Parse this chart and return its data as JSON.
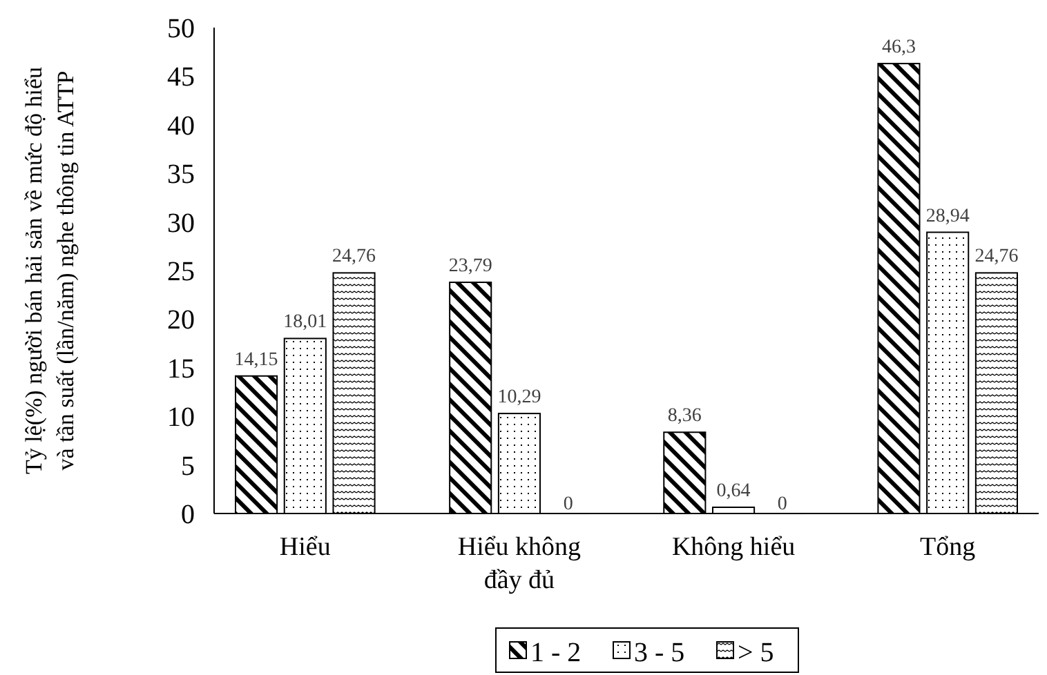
{
  "chart_data": {
    "type": "bar",
    "ylabel": "Tỷ lệ(%) người bán hải sản về mức độ hiểu và tần suất (lần/năm) nghe thông tin ATTP",
    "categories": [
      "Hiểu",
      "Hiểu không đầy đủ",
      "Không hiểu",
      "Tổng"
    ],
    "series": [
      {
        "name": "1 - 2",
        "color": "#000000",
        "values": [
          14.15,
          23.79,
          8.36,
          46.3
        ],
        "value_labels": [
          "14,15",
          "23,79",
          "8,36",
          "46,3"
        ]
      },
      {
        "name": "3 - 5",
        "color": "#000000",
        "values": [
          18.01,
          10.29,
          0.64,
          28.94
        ],
        "value_labels": [
          "18,01",
          "10,29",
          "0,64",
          "28,94"
        ]
      },
      {
        "name": "> 5",
        "color": "#000000",
        "values": [
          24.76,
          0,
          0,
          24.76
        ],
        "value_labels": [
          "24,76",
          "0",
          "0",
          "24,76"
        ]
      }
    ],
    "ylim": [
      0,
      50
    ],
    "yticks": [
      0,
      5,
      10,
      15,
      20,
      25,
      30,
      35,
      40,
      45,
      50
    ],
    "legend": "bottom",
    "grid": false
  }
}
